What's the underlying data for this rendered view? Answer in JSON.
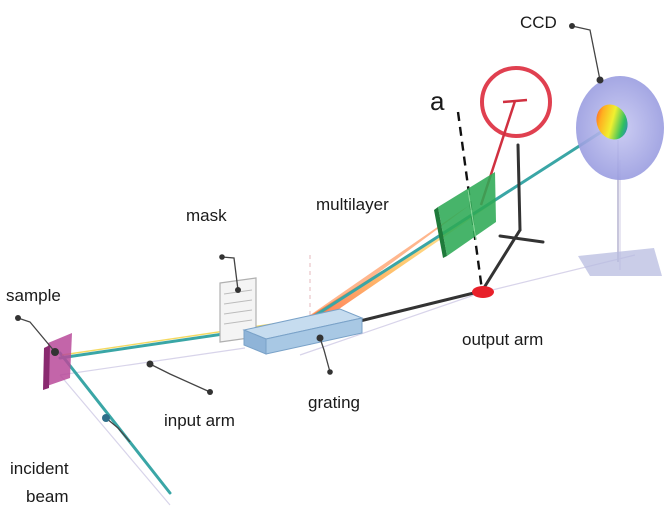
{
  "labels": {
    "ccd": "CCD",
    "a": "a",
    "multilayer": "multilayer",
    "mask": "mask",
    "sample": "sample",
    "output_arm": "output arm",
    "grating": "grating",
    "input_arm": "input arm",
    "incident_line1": "incident",
    "incident_line2": "beam"
  },
  "colors": {
    "beam": "#3aa6a6",
    "ccd": "#a6a8e6",
    "wheel": "#e04050",
    "multilayer": "#2eaa55",
    "grating": "#9dc0e0",
    "sample": "#b84a9a",
    "pivot": "#e8202a",
    "arm": "#333333"
  }
}
